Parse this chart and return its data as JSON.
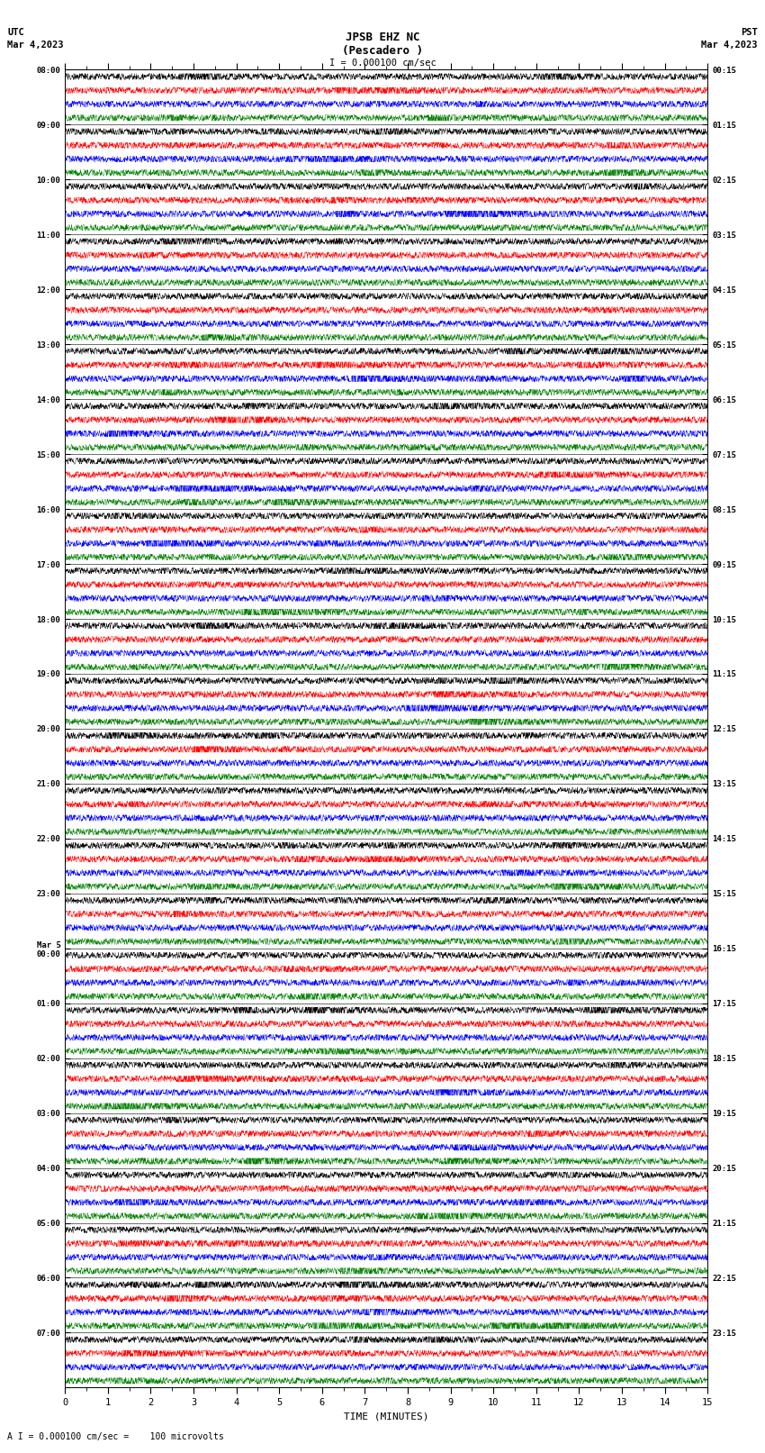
{
  "title_line1": "JPSB EHZ NC",
  "title_line2": "(Pescadero )",
  "scale_label": "I = 0.000100 cm/sec",
  "utc_label": "UTC",
  "utc_date": "Mar 4,2023",
  "pst_label": "PST",
  "pst_date": "Mar 4,2023",
  "bottom_label": "A I = 0.000100 cm/sec =    100 microvolts",
  "xlabel": "TIME (MINUTES)",
  "left_times": [
    "08:00",
    "09:00",
    "10:00",
    "11:00",
    "12:00",
    "13:00",
    "14:00",
    "15:00",
    "16:00",
    "17:00",
    "18:00",
    "19:00",
    "20:00",
    "21:00",
    "22:00",
    "23:00",
    "Mar 5\n00:00",
    "01:00",
    "02:00",
    "03:00",
    "04:00",
    "05:00",
    "06:00",
    "07:00"
  ],
  "right_times": [
    "00:15",
    "01:15",
    "02:15",
    "03:15",
    "04:15",
    "05:15",
    "06:15",
    "07:15",
    "08:15",
    "09:15",
    "10:15",
    "11:15",
    "12:15",
    "13:15",
    "14:15",
    "15:15",
    "16:15",
    "17:15",
    "18:15",
    "19:15",
    "20:15",
    "21:15",
    "22:15",
    "23:15"
  ],
  "n_rows": 24,
  "n_traces_per_row": 4,
  "trace_colors": [
    "black",
    "red",
    "blue",
    "green"
  ],
  "minutes_per_trace": 15,
  "samples_per_minute": 200,
  "bg_color": "#ffffff",
  "trace_linewidth": 0.3,
  "fig_width": 8.5,
  "fig_height": 16.13
}
